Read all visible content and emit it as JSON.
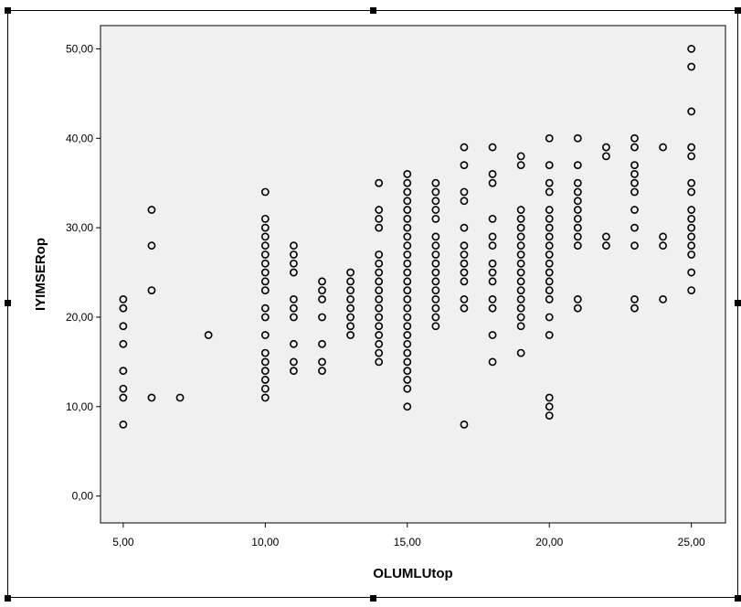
{
  "chart_data": {
    "type": "scatter",
    "title": "",
    "xlabel": "OLUMLUtop",
    "ylabel": "IYIMSERop",
    "xlim": [
      4.2,
      26.2
    ],
    "ylim": [
      -3,
      52.6
    ],
    "x_ticks": [
      "5,00",
      "10,00",
      "15,00",
      "20,00",
      "25,00"
    ],
    "x_tick_values": [
      5,
      10,
      15,
      20,
      25
    ],
    "y_ticks": [
      "0,00",
      "10,00",
      "20,00",
      "30,00",
      "40,00",
      "50,00"
    ],
    "y_tick_values": [
      0,
      10,
      20,
      30,
      40,
      50
    ],
    "grid": false,
    "legend": "none",
    "colors": {
      "plot_background": "#f0f0f0",
      "marker": "#000000"
    },
    "points": [
      [
        5,
        8
      ],
      [
        5,
        11
      ],
      [
        5,
        12
      ],
      [
        5,
        14
      ],
      [
        5,
        17
      ],
      [
        5,
        19
      ],
      [
        5,
        21
      ],
      [
        5,
        22
      ],
      [
        6,
        11
      ],
      [
        6,
        23
      ],
      [
        6,
        28
      ],
      [
        6,
        32
      ],
      [
        7,
        11
      ],
      [
        8,
        18
      ],
      [
        10,
        11
      ],
      [
        10,
        12
      ],
      [
        10,
        13
      ],
      [
        10,
        14
      ],
      [
        10,
        15
      ],
      [
        10,
        16
      ],
      [
        10,
        18
      ],
      [
        10,
        20
      ],
      [
        10,
        21
      ],
      [
        10,
        23
      ],
      [
        10,
        24
      ],
      [
        10,
        25
      ],
      [
        10,
        26
      ],
      [
        10,
        27
      ],
      [
        10,
        28
      ],
      [
        10,
        29
      ],
      [
        10,
        30
      ],
      [
        10,
        31
      ],
      [
        10,
        34
      ],
      [
        11,
        14
      ],
      [
        11,
        15
      ],
      [
        11,
        17
      ],
      [
        11,
        20
      ],
      [
        11,
        21
      ],
      [
        11,
        22
      ],
      [
        11,
        25
      ],
      [
        11,
        26
      ],
      [
        11,
        27
      ],
      [
        11,
        28
      ],
      [
        12,
        14
      ],
      [
        12,
        15
      ],
      [
        12,
        17
      ],
      [
        12,
        20
      ],
      [
        12,
        22
      ],
      [
        12,
        23
      ],
      [
        12,
        24
      ],
      [
        13,
        18
      ],
      [
        13,
        19
      ],
      [
        13,
        20
      ],
      [
        13,
        21
      ],
      [
        13,
        22
      ],
      [
        13,
        23
      ],
      [
        13,
        24
      ],
      [
        13,
        25
      ],
      [
        14,
        15
      ],
      [
        14,
        16
      ],
      [
        14,
        17
      ],
      [
        14,
        18
      ],
      [
        14,
        19
      ],
      [
        14,
        20
      ],
      [
        14,
        21
      ],
      [
        14,
        22
      ],
      [
        14,
        23
      ],
      [
        14,
        24
      ],
      [
        14,
        25
      ],
      [
        14,
        26
      ],
      [
        14,
        27
      ],
      [
        14,
        30
      ],
      [
        14,
        31
      ],
      [
        14,
        32
      ],
      [
        14,
        35
      ],
      [
        15,
        10
      ],
      [
        15,
        12
      ],
      [
        15,
        13
      ],
      [
        15,
        14
      ],
      [
        15,
        15
      ],
      [
        15,
        16
      ],
      [
        15,
        17
      ],
      [
        15,
        18
      ],
      [
        15,
        19
      ],
      [
        15,
        20
      ],
      [
        15,
        21
      ],
      [
        15,
        22
      ],
      [
        15,
        23
      ],
      [
        15,
        24
      ],
      [
        15,
        25
      ],
      [
        15,
        26
      ],
      [
        15,
        27
      ],
      [
        15,
        28
      ],
      [
        15,
        29
      ],
      [
        15,
        30
      ],
      [
        15,
        31
      ],
      [
        15,
        32
      ],
      [
        15,
        33
      ],
      [
        15,
        34
      ],
      [
        15,
        35
      ],
      [
        15,
        36
      ],
      [
        16,
        19
      ],
      [
        16,
        20
      ],
      [
        16,
        21
      ],
      [
        16,
        22
      ],
      [
        16,
        23
      ],
      [
        16,
        24
      ],
      [
        16,
        25
      ],
      [
        16,
        26
      ],
      [
        16,
        27
      ],
      [
        16,
        28
      ],
      [
        16,
        29
      ],
      [
        16,
        31
      ],
      [
        16,
        32
      ],
      [
        16,
        33
      ],
      [
        16,
        34
      ],
      [
        16,
        35
      ],
      [
        17,
        8
      ],
      [
        17,
        21
      ],
      [
        17,
        22
      ],
      [
        17,
        24
      ],
      [
        17,
        25
      ],
      [
        17,
        26
      ],
      [
        17,
        27
      ],
      [
        17,
        28
      ],
      [
        17,
        30
      ],
      [
        17,
        33
      ],
      [
        17,
        34
      ],
      [
        17,
        37
      ],
      [
        17,
        39
      ],
      [
        18,
        15
      ],
      [
        18,
        18
      ],
      [
        18,
        21
      ],
      [
        18,
        22
      ],
      [
        18,
        24
      ],
      [
        18,
        25
      ],
      [
        18,
        26
      ],
      [
        18,
        28
      ],
      [
        18,
        29
      ],
      [
        18,
        31
      ],
      [
        18,
        35
      ],
      [
        18,
        36
      ],
      [
        18,
        39
      ],
      [
        19,
        16
      ],
      [
        19,
        19
      ],
      [
        19,
        20
      ],
      [
        19,
        21
      ],
      [
        19,
        22
      ],
      [
        19,
        23
      ],
      [
        19,
        24
      ],
      [
        19,
        25
      ],
      [
        19,
        26
      ],
      [
        19,
        27
      ],
      [
        19,
        28
      ],
      [
        19,
        29
      ],
      [
        19,
        30
      ],
      [
        19,
        31
      ],
      [
        19,
        32
      ],
      [
        19,
        37
      ],
      [
        19,
        38
      ],
      [
        20,
        9
      ],
      [
        20,
        10
      ],
      [
        20,
        11
      ],
      [
        20,
        18
      ],
      [
        20,
        20
      ],
      [
        20,
        22
      ],
      [
        20,
        23
      ],
      [
        20,
        24
      ],
      [
        20,
        25
      ],
      [
        20,
        26
      ],
      [
        20,
        27
      ],
      [
        20,
        28
      ],
      [
        20,
        29
      ],
      [
        20,
        30
      ],
      [
        20,
        31
      ],
      [
        20,
        32
      ],
      [
        20,
        34
      ],
      [
        20,
        35
      ],
      [
        20,
        37
      ],
      [
        20,
        40
      ],
      [
        21,
        21
      ],
      [
        21,
        22
      ],
      [
        21,
        28
      ],
      [
        21,
        29
      ],
      [
        21,
        30
      ],
      [
        21,
        31
      ],
      [
        21,
        32
      ],
      [
        21,
        33
      ],
      [
        21,
        34
      ],
      [
        21,
        35
      ],
      [
        21,
        37
      ],
      [
        21,
        40
      ],
      [
        22,
        28
      ],
      [
        22,
        29
      ],
      [
        22,
        38
      ],
      [
        22,
        39
      ],
      [
        23,
        21
      ],
      [
        23,
        22
      ],
      [
        23,
        28
      ],
      [
        23,
        30
      ],
      [
        23,
        32
      ],
      [
        23,
        34
      ],
      [
        23,
        35
      ],
      [
        23,
        36
      ],
      [
        23,
        37
      ],
      [
        23,
        39
      ],
      [
        23,
        40
      ],
      [
        24,
        22
      ],
      [
        24,
        28
      ],
      [
        24,
        29
      ],
      [
        24,
        39
      ],
      [
        25,
        23
      ],
      [
        25,
        25
      ],
      [
        25,
        27
      ],
      [
        25,
        28
      ],
      [
        25,
        29
      ],
      [
        25,
        30
      ],
      [
        25,
        31
      ],
      [
        25,
        32
      ],
      [
        25,
        34
      ],
      [
        25,
        35
      ],
      [
        25,
        38
      ],
      [
        25,
        39
      ],
      [
        25,
        43
      ],
      [
        25,
        48
      ],
      [
        25,
        50
      ]
    ]
  }
}
